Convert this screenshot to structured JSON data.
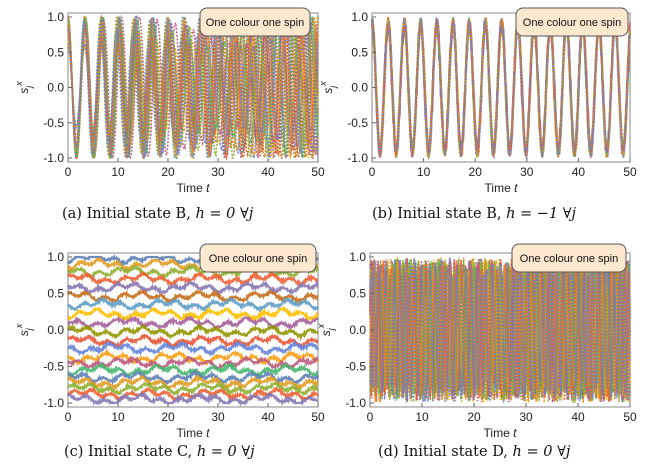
{
  "figure": {
    "colors": [
      "#5E81B5",
      "#E19C24",
      "#8FB032",
      "#EB6235",
      "#8778B3",
      "#C56E1A",
      "#5D9EC7",
      "#FFBF00",
      "#A5609D",
      "#929600",
      "#E95536",
      "#6685D9",
      "#F89F13",
      "#BC5B80",
      "#47B66D"
    ]
  },
  "chart_data": [
    {
      "type": "line",
      "panel": "a",
      "caption_prefix": "(a) Initial state B,",
      "caption_math": "h = 0 ∀j",
      "legend": "One colour one spin",
      "xlabel": "Time t",
      "ylabel": "s_j^x",
      "xlim": [
        0,
        50
      ],
      "ylim": [
        -1,
        1
      ],
      "xticks": [
        "0",
        "10",
        "20",
        "30",
        "40",
        "50"
      ],
      "yticks": [
        "1.0",
        "0.5",
        "0.0",
        "-0.5",
        "-1.0"
      ],
      "n_series": 20,
      "dynamics": "oscillating, each spin drifting out of phase",
      "period": 3.5
    },
    {
      "type": "line",
      "panel": "b",
      "caption_prefix": "(b) Initial state B,",
      "caption_math": "h = −1 ∀j",
      "legend": "One colour one spin",
      "xlabel": "Time t",
      "ylabel": "s_j^x",
      "xlim": [
        0,
        50
      ],
      "ylim": [
        -1,
        1
      ],
      "xticks": [
        "0",
        "10",
        "20",
        "30",
        "40",
        "50"
      ],
      "yticks": [
        "1.0",
        "0.5",
        "0.0",
        "-0.5",
        "-1.0"
      ],
      "n_series": 20,
      "dynamics": "coherent oscillation between -1 and 1",
      "period": 3.14
    },
    {
      "type": "line",
      "panel": "c",
      "caption_prefix": "(c) Initial state C,",
      "caption_math": "h = 0 ∀j",
      "legend": "One colour one spin",
      "xlabel": "Time t",
      "ylabel": "s_j^x",
      "xlim": [
        0,
        50
      ],
      "ylim": [
        -1,
        1
      ],
      "xticks": [
        "0",
        "10",
        "20",
        "30",
        "40",
        "50"
      ],
      "yticks": [
        "1.0",
        "0.5",
        "0.0",
        "-0.5",
        "-1.0"
      ],
      "n_series": 20,
      "dynamics": "each spin stays near its own level",
      "levels": [
        0.98,
        0.9,
        0.8,
        0.7,
        0.58,
        0.46,
        0.35,
        0.22,
        0.1,
        -0.02,
        -0.15,
        -0.25,
        -0.38,
        -0.45,
        -0.55,
        -0.65,
        -0.72,
        -0.8,
        -0.88,
        -0.95
      ]
    },
    {
      "type": "line",
      "panel": "d",
      "caption_prefix": "(d) Initial state D,",
      "caption_math": "h = 0 ∀j",
      "legend": "One colour one spin",
      "xlabel": "Time t",
      "ylabel": "s_j^x",
      "xlim": [
        0,
        50
      ],
      "ylim": [
        -1,
        1
      ],
      "xticks": [
        "0",
        "10",
        "20",
        "30",
        "40",
        "50"
      ],
      "yticks": [
        "1.0",
        "0.5",
        "0.0",
        "-0.5",
        "-1.0"
      ],
      "n_series": 20,
      "dynamics": "fast irregular oscillation filling -1 to 1"
    }
  ]
}
